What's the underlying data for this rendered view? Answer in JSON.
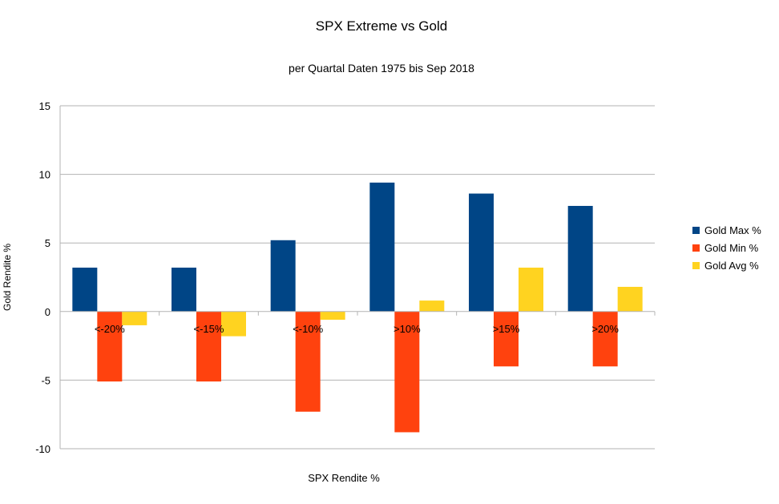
{
  "chart_data": {
    "type": "bar",
    "title": "SPX Extreme vs Gold",
    "subtitle": "per Quartal Daten 1975 bis Sep 2018",
    "xlabel": "SPX Rendite %",
    "ylabel": "Gold Rendite %",
    "ylim": [
      -10,
      15
    ],
    "yticks": [
      -10,
      -5,
      0,
      5,
      10,
      15
    ],
    "grid": true,
    "legend_position": "right",
    "categories": [
      "<-20%",
      "<-15%",
      "<-10%",
      ">10%",
      ">15%",
      ">20%"
    ],
    "series": [
      {
        "name": "Gold Max %",
        "color": "#004586",
        "values": [
          3.2,
          3.2,
          5.2,
          9.4,
          8.6,
          7.7
        ]
      },
      {
        "name": "Gold Min %",
        "color": "#ff420e",
        "values": [
          -5.1,
          -5.1,
          -7.3,
          -8.8,
          -4.0,
          -4.0
        ]
      },
      {
        "name": "Gold Avg %",
        "color": "#ffd320",
        "values": [
          -1.0,
          -1.8,
          -0.6,
          0.8,
          3.2,
          1.8
        ]
      }
    ]
  }
}
